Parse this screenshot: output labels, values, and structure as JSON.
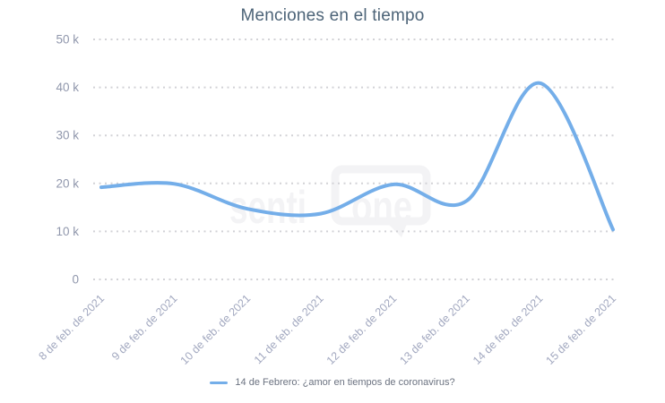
{
  "chart_data": {
    "type": "line",
    "title": "Menciones en el tiempo",
    "categories": [
      "8 de feb. de 2021",
      "9 de feb. de 2021",
      "10 de feb. de 2021",
      "11 de feb. de 2021",
      "12 de feb. de 2021",
      "13 de feb. de 2021",
      "14 de feb. de 2021",
      "15 de feb. de 2021"
    ],
    "series": [
      {
        "name": "14 de Febrero: ¿amor en tiempos de coronavirus?",
        "values": [
          19200,
          19900,
          14700,
          13700,
          19800,
          16400,
          40900,
          10400
        ]
      }
    ],
    "xlabel": "",
    "ylabel": "",
    "ylim": [
      0,
      50000
    ],
    "ytick_values": [
      50000,
      40000,
      30000,
      20000,
      10000,
      0
    ],
    "ytick_labels_top_to_bottom": [
      "50 k",
      "40 k",
      "30 k",
      "20 k",
      "10 k",
      "0"
    ],
    "grid": "horizontal-dotted",
    "legend_position": "bottom",
    "watermark": {
      "left": "senti",
      "box": "one"
    },
    "colors": {
      "line": "#74aee9",
      "title": "#4d6478",
      "y_tick": "#9097ac",
      "x_tick": "#a3a9c0",
      "grid": "#d2d2d6",
      "legend_text": "#6b7280",
      "watermark": "#f3f3f5"
    }
  }
}
